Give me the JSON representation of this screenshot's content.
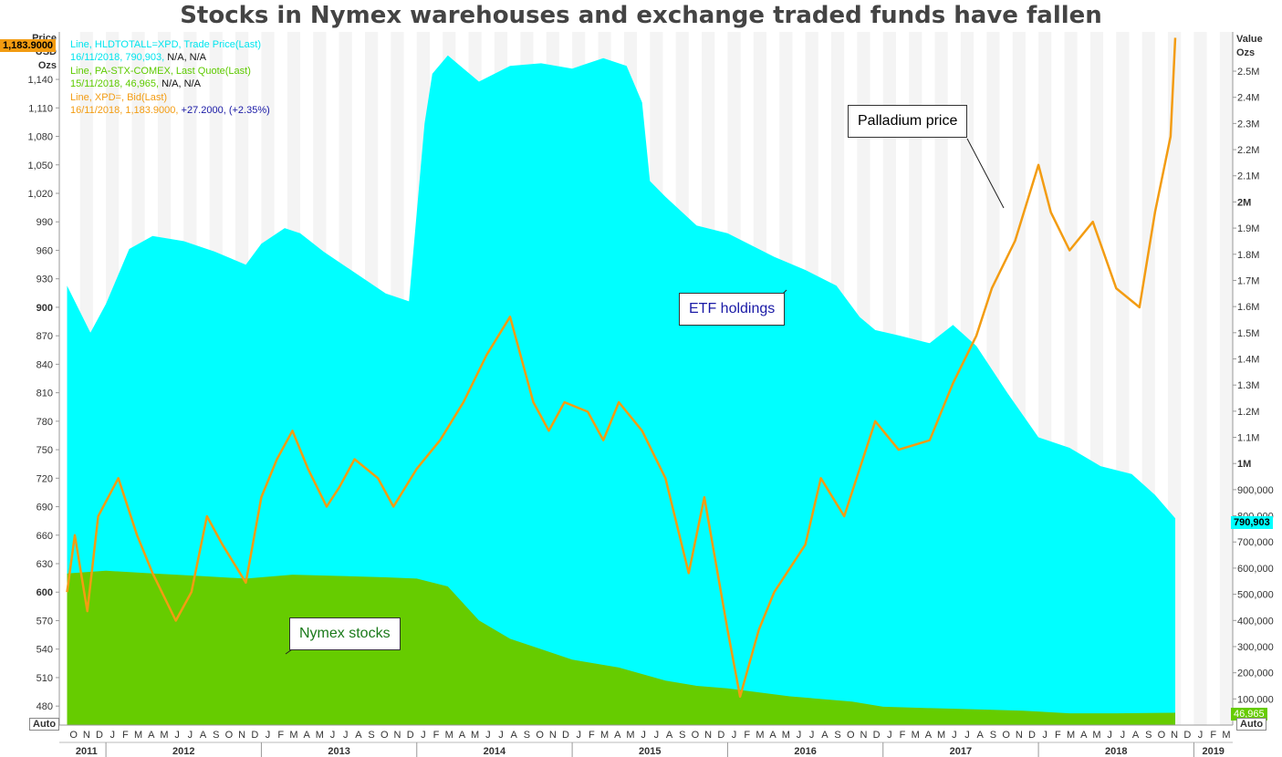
{
  "chart_data": {
    "type": "area",
    "title": "Stocks in Nymex warehouses and exchange traded funds have fallen",
    "left_axis": {
      "label_lines": [
        "Price",
        "USD",
        "Ozs"
      ],
      "range": [
        460,
        1190
      ],
      "ticks": [
        "480",
        "510",
        "540",
        "570",
        "600",
        "630",
        "660",
        "690",
        "720",
        "750",
        "780",
        "810",
        "840",
        "870",
        "900",
        "930",
        "960",
        "990",
        "1,020",
        "1,050",
        "1,080",
        "1,110",
        "1,140"
      ],
      "bold_ticks": [
        "600",
        "900"
      ],
      "auto_label": "Auto"
    },
    "right_axis": {
      "label_lines": [
        "Value",
        "Ozs"
      ],
      "range": [
        0,
        2650000
      ],
      "ticks": [
        "100,000",
        "200,000",
        "300,000",
        "400,000",
        "500,000",
        "600,000",
        "700,000",
        "800,000",
        "900,000",
        "1M",
        "1.1M",
        "1.2M",
        "1.3M",
        "1.4M",
        "1.5M",
        "1.6M",
        "1.7M",
        "1.8M",
        "1.9M",
        "2M",
        "2.1M",
        "2.2M",
        "2.3M",
        "2.4M",
        "2.5M"
      ],
      "bold_ticks": [
        "1M",
        "2M"
      ],
      "auto_label": "Auto"
    },
    "x_axis": {
      "month_ticks": [
        "O",
        "N",
        "D",
        "J",
        "F",
        "M",
        "A",
        "M",
        "J",
        "J",
        "A",
        "S",
        "O",
        "N",
        "D",
        "J",
        "F",
        "M",
        "A",
        "M",
        "J",
        "J",
        "A",
        "S",
        "O",
        "N",
        "D",
        "J",
        "F",
        "M",
        "A",
        "M",
        "J",
        "J",
        "A",
        "S",
        "O",
        "N",
        "D",
        "J",
        "F",
        "M",
        "A",
        "M",
        "J",
        "J",
        "A",
        "S",
        "O",
        "N",
        "D",
        "J",
        "F",
        "M",
        "A",
        "M",
        "J",
        "J",
        "A",
        "S",
        "O",
        "N",
        "D",
        "J",
        "F",
        "M",
        "A",
        "M",
        "J",
        "J",
        "A",
        "S",
        "O",
        "N",
        "D",
        "J",
        "F",
        "M",
        "A",
        "M",
        "J",
        "J",
        "A",
        "S",
        "O",
        "N",
        "D",
        "J",
        "F",
        "M",
        "A"
      ],
      "years": [
        "2011",
        "2012",
        "2013",
        "2014",
        "2015",
        "2016",
        "2017",
        "2018",
        "2019"
      ]
    },
    "legend": [
      {
        "line1": "Line, HLDTOTALL=XPD, Trade Price(Last)",
        "line2_a": "16/11/2018, 790,903,",
        "line2_b": " N/A, N/A",
        "color": "#00e5ee"
      },
      {
        "line1": "Line, PA-STX-COMEX, Last Quote(Last)",
        "line2_a": "15/11/2018, 46,965,",
        "line2_b": " N/A, N/A",
        "color": "#5ecb00"
      },
      {
        "line1": "Line, XPD=, Bid(Last)",
        "line2_a": "16/11/2018, 1,183.9000,",
        "line2_b": " +27.2000, (+2.35%)",
        "color": "#f39c12"
      }
    ],
    "last_values": {
      "price": "1,183.9000",
      "etf": "790,903",
      "nymex": "46,965"
    },
    "series": [
      {
        "name": "ETF holdings",
        "color": "#00ffff",
        "axis": "right",
        "x": [
          2011.75,
          2011.9,
          2012.0,
          2012.15,
          2012.3,
          2012.5,
          2012.7,
          2012.9,
          2013.0,
          2013.15,
          2013.25,
          2013.4,
          2013.6,
          2013.8,
          2013.95,
          2014.05,
          2014.1,
          2014.2,
          2014.4,
          2014.6,
          2014.8,
          2015.0,
          2015.2,
          2015.35,
          2015.45,
          2015.5,
          2015.6,
          2015.8,
          2016.0,
          2016.3,
          2016.5,
          2016.7,
          2016.85,
          2016.95,
          2017.1,
          2017.3,
          2017.45,
          2017.6,
          2017.8,
          2018.0,
          2018.2,
          2018.4,
          2018.6,
          2018.75,
          2018.88
        ],
        "values": [
          1680000,
          1500000,
          1610000,
          1820000,
          1870000,
          1850000,
          1810000,
          1760000,
          1840000,
          1900000,
          1880000,
          1810000,
          1730000,
          1650000,
          1620000,
          2300000,
          2490000,
          2560000,
          2460000,
          2520000,
          2530000,
          2510000,
          2550000,
          2520000,
          2380000,
          2080000,
          2020000,
          1910000,
          1880000,
          1790000,
          1740000,
          1680000,
          1560000,
          1510000,
          1490000,
          1460000,
          1530000,
          1450000,
          1270000,
          1100000,
          1060000,
          990000,
          960000,
          880000,
          790903
        ]
      },
      {
        "name": "Nymex stocks",
        "color": "#66cc00",
        "axis": "right",
        "x": [
          2011.75,
          2012.0,
          2012.3,
          2012.6,
          2012.9,
          2013.2,
          2013.5,
          2013.8,
          2014.0,
          2014.2,
          2014.4,
          2014.6,
          2014.8,
          2015.0,
          2015.3,
          2015.6,
          2015.8,
          2016.0,
          2016.4,
          2016.8,
          2017.0,
          2017.3,
          2017.6,
          2017.9,
          2018.2,
          2018.5,
          2018.88
        ],
        "values": [
          580000,
          590000,
          580000,
          570000,
          560000,
          575000,
          570000,
          565000,
          560000,
          530000,
          400000,
          330000,
          290000,
          250000,
          220000,
          170000,
          150000,
          140000,
          110000,
          90000,
          70000,
          65000,
          60000,
          55000,
          45000,
          45000,
          46965
        ]
      },
      {
        "name": "Palladium price",
        "color": "#f39c12",
        "axis": "left",
        "x": [
          2011.75,
          2011.8,
          2011.88,
          2011.95,
          2012.08,
          2012.2,
          2012.3,
          2012.45,
          2012.55,
          2012.65,
          2012.75,
          2012.9,
          2013.0,
          2013.1,
          2013.2,
          2013.3,
          2013.42,
          2013.5,
          2013.6,
          2013.75,
          2013.85,
          2014.0,
          2014.15,
          2014.3,
          2014.45,
          2014.6,
          2014.75,
          2014.85,
          2014.95,
          2015.1,
          2015.2,
          2015.3,
          2015.45,
          2015.6,
          2015.75,
          2015.85,
          2016.0,
          2016.08,
          2016.2,
          2016.3,
          2016.5,
          2016.6,
          2016.75,
          2016.95,
          2017.1,
          2017.3,
          2017.45,
          2017.6,
          2017.7,
          2017.85,
          2018.0,
          2018.08,
          2018.2,
          2018.35,
          2018.5,
          2018.65,
          2018.75,
          2018.85,
          2018.88
        ],
        "values": [
          600,
          660,
          580,
          680,
          720,
          660,
          620,
          570,
          600,
          680,
          650,
          610,
          700,
          740,
          770,
          730,
          690,
          710,
          740,
          720,
          690,
          730,
          760,
          800,
          850,
          890,
          800,
          770,
          800,
          790,
          760,
          800,
          770,
          720,
          620,
          700,
          560,
          490,
          560,
          600,
          650,
          720,
          680,
          780,
          750,
          760,
          820,
          870,
          920,
          970,
          1050,
          1000,
          960,
          990,
          920,
          900,
          1000,
          1080,
          1183.9
        ]
      }
    ],
    "annotations": [
      "Palladium price",
      "ETF holdings",
      "Nymex stocks"
    ]
  }
}
